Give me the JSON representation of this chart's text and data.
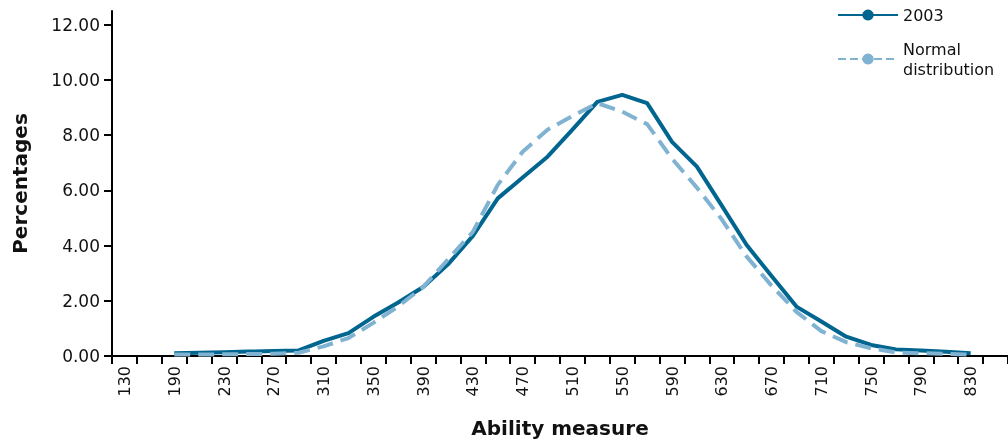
{
  "chart_data": {
    "type": "line",
    "xlabel": "Ability measure",
    "ylabel": "Percentages",
    "categories": [
      "130",
      null,
      "190",
      null,
      "230",
      null,
      "270",
      null,
      "310",
      null,
      "350",
      null,
      "390",
      null,
      "430",
      null,
      "470",
      null,
      "510",
      null,
      "550",
      null,
      "590",
      null,
      "630",
      null,
      "670",
      null,
      "710",
      null,
      "750",
      null,
      "790",
      null,
      "830",
      null
    ],
    "series": [
      {
        "name": "2003",
        "color": "#00658f",
        "line_style": "solid",
        "values": [
          null,
          null,
          0.1,
          0.12,
          0.14,
          0.16,
          0.18,
          0.2,
          0.55,
          0.83,
          1.42,
          1.94,
          2.5,
          3.32,
          4.35,
          5.71,
          6.47,
          7.22,
          8.2,
          9.21,
          9.46,
          9.16,
          7.76,
          6.86,
          5.45,
          4.02,
          2.9,
          1.79,
          1.25,
          0.7,
          0.4,
          0.24,
          0.2,
          0.15,
          0.1,
          null
        ]
      },
      {
        "name": "Normal distribution",
        "color": "#7fb3d1",
        "line_style": "dashed",
        "values": [
          null,
          null,
          0.05,
          0.05,
          0.06,
          0.07,
          0.08,
          0.12,
          0.35,
          0.65,
          1.2,
          1.8,
          2.5,
          3.5,
          4.5,
          6.2,
          7.4,
          8.2,
          8.7,
          9.16,
          8.85,
          8.4,
          7.15,
          6.1,
          4.95,
          3.6,
          2.55,
          1.6,
          0.9,
          0.5,
          0.28,
          0.13,
          0.1,
          0.08,
          0.05,
          null
        ]
      }
    ],
    "ylim": [
      0,
      12.5
    ],
    "yticks": [
      {
        "value": 0,
        "label": "0.00"
      },
      {
        "value": 2,
        "label": "2.00"
      },
      {
        "value": 4,
        "label": "4.00"
      },
      {
        "value": 6,
        "label": "6.00"
      },
      {
        "value": 8,
        "label": "8.00"
      },
      {
        "value": 10,
        "label": "10.00"
      },
      {
        "value": 12,
        "label": "12.00"
      }
    ],
    "grid": false,
    "legend": "top right",
    "marker": "none"
  }
}
